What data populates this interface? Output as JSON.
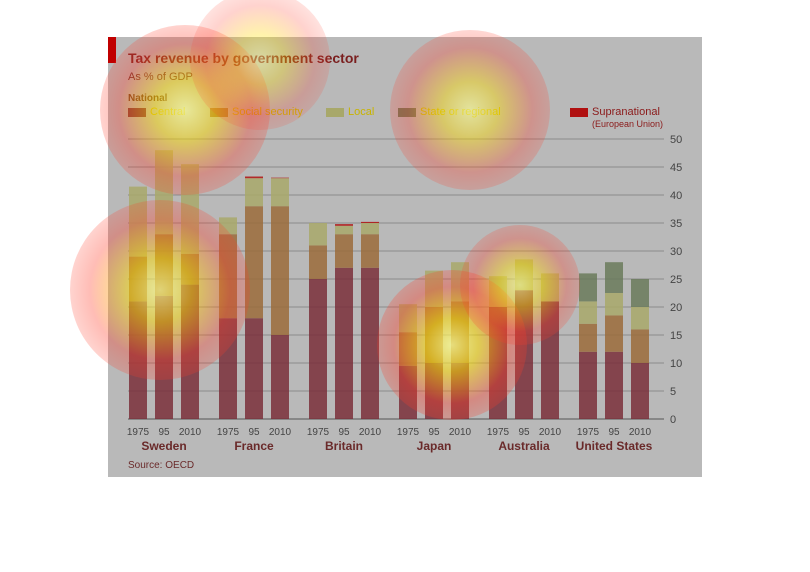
{
  "title": "Tax revenue by government sector",
  "subtitle": "As % of GDP",
  "legend": {
    "heading": "National",
    "items": [
      {
        "label": "Central",
        "color": "#7a2f3a"
      },
      {
        "label": "Social security",
        "color": "#9b6b3a"
      },
      {
        "label": "Local",
        "color": "#a8a86a"
      },
      {
        "label": "State or regional",
        "color": "#6a7a5a"
      }
    ],
    "supranational": {
      "label": "Supranational",
      "note": "(European Union)",
      "color": "#b01010"
    }
  },
  "source": "Source: OECD",
  "accent_color": "#c00000",
  "chart_data": {
    "type": "bar",
    "stacked": true,
    "ylim": [
      0,
      50
    ],
    "yticks": [
      0,
      5,
      10,
      15,
      20,
      25,
      30,
      35,
      40,
      45,
      50
    ],
    "groups": [
      {
        "country": "Sweden",
        "years": [
          "1975",
          "95",
          "2010"
        ]
      },
      {
        "country": "France",
        "years": [
          "1975",
          "95",
          "2010"
        ]
      },
      {
        "country": "Britain",
        "years": [
          "1975",
          "95",
          "2010"
        ]
      },
      {
        "country": "Japan",
        "years": [
          "1975",
          "95",
          "2010"
        ]
      },
      {
        "country": "Australia",
        "years": [
          "1975",
          "95",
          "2010"
        ]
      },
      {
        "country": "United States",
        "years": [
          "1975",
          "95",
          "2010"
        ]
      }
    ],
    "series": [
      {
        "name": "Central",
        "values": [
          21,
          22,
          24,
          18,
          18,
          15,
          25,
          27,
          27,
          9.5,
          10,
          10,
          20,
          23,
          21,
          12,
          12,
          10
        ]
      },
      {
        "name": "Social security",
        "values": [
          8,
          11,
          5.5,
          15,
          20,
          23,
          6,
          6,
          6,
          6,
          10,
          11,
          0,
          0,
          0,
          5,
          6.5,
          6
        ]
      },
      {
        "name": "Local",
        "values": [
          12.5,
          15,
          16,
          3,
          5,
          5,
          4,
          1.5,
          2,
          5,
          6.5,
          7,
          5.5,
          5.5,
          5,
          4,
          4,
          4
        ]
      },
      {
        "name": "State or regional",
        "values": [
          0,
          0,
          0,
          0,
          0,
          0,
          0,
          0,
          0,
          0,
          0,
          0,
          0,
          0,
          0,
          5,
          5.5,
          5
        ]
      },
      {
        "name": "Supranational",
        "values": [
          0,
          0,
          0,
          0,
          0.3,
          0.1,
          0,
          0.3,
          0.2,
          0,
          0,
          0,
          0,
          0,
          0,
          0,
          0,
          0
        ]
      }
    ]
  },
  "heatmap": {
    "spots": [
      {
        "id": "legend-left",
        "intensity": 0.9
      },
      {
        "id": "legend-right",
        "intensity": 0.8
      },
      {
        "id": "sweden-bars",
        "intensity": 0.9
      },
      {
        "id": "japan-center",
        "intensity": 1.0
      },
      {
        "id": "australia-top",
        "intensity": 0.8
      },
      {
        "id": "title-area",
        "intensity": 0.6
      }
    ]
  }
}
